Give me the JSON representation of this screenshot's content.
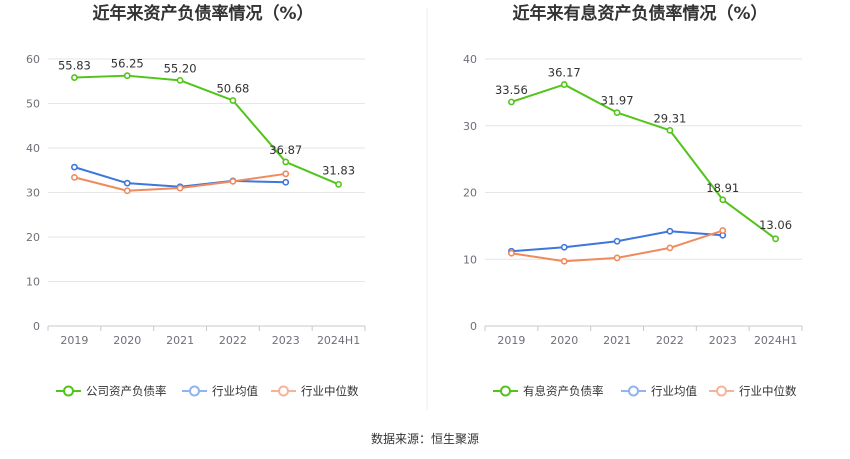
{
  "source_text": "数据来源：恒生聚源",
  "colors": {
    "company": "#52c41a",
    "industry_avg": "#3f76dc",
    "industry_median": "#f08a5d",
    "legend_avg": "#8fb4ef",
    "legend_median": "#f5b49a",
    "grid": "#e6e6e6",
    "divider": "#eeeeee"
  },
  "chart_data": [
    {
      "type": "line",
      "title": "近年来资产负债率情况（%）",
      "categories": [
        "2019",
        "2020",
        "2021",
        "2022",
        "2023",
        "2024H1"
      ],
      "yticks": [
        "0",
        "10",
        "20",
        "30",
        "40",
        "50",
        "60"
      ],
      "ylim": [
        0,
        60
      ],
      "grid": true,
      "legend_position": "bottom",
      "series": [
        {
          "name": "公司资产负债率",
          "values": [
            55.83,
            56.25,
            55.2,
            50.68,
            36.87,
            31.83
          ],
          "labels": [
            "55.83",
            "56.25",
            "55.20",
            "50.68",
            "36.87",
            "31.83"
          ],
          "color_key": "company",
          "legend_color_key": "company"
        },
        {
          "name": "行业均值",
          "values": [
            35.7,
            32.1,
            31.3,
            32.6,
            32.3,
            null
          ],
          "color_key": "industry_avg",
          "legend_color_key": "legend_avg"
        },
        {
          "name": "行业中位数",
          "values": [
            33.4,
            30.4,
            31.0,
            32.5,
            34.2,
            null
          ],
          "color_key": "industry_median",
          "legend_color_key": "legend_median"
        }
      ]
    },
    {
      "type": "line",
      "title": "近年来有息资产负债率情况（%）",
      "categories": [
        "2019",
        "2020",
        "2021",
        "2022",
        "2023",
        "2024H1"
      ],
      "yticks": [
        "0",
        "10",
        "20",
        "30",
        "40"
      ],
      "ylim": [
        0,
        40
      ],
      "grid": true,
      "legend_position": "bottom",
      "series": [
        {
          "name": "有息资产负债率",
          "values": [
            33.56,
            36.17,
            31.97,
            29.31,
            18.91,
            13.06
          ],
          "labels": [
            "33.56",
            "36.17",
            "31.97",
            "29.31",
            "18.91",
            "13.06"
          ],
          "color_key": "company",
          "legend_color_key": "company"
        },
        {
          "name": "行业均值",
          "values": [
            11.2,
            11.8,
            12.7,
            14.2,
            13.6,
            null
          ],
          "color_key": "industry_avg",
          "legend_color_key": "legend_avg"
        },
        {
          "name": "行业中位数",
          "values": [
            10.9,
            9.7,
            10.2,
            11.7,
            14.3,
            null
          ],
          "color_key": "industry_median",
          "legend_color_key": "legend_median"
        }
      ]
    }
  ]
}
